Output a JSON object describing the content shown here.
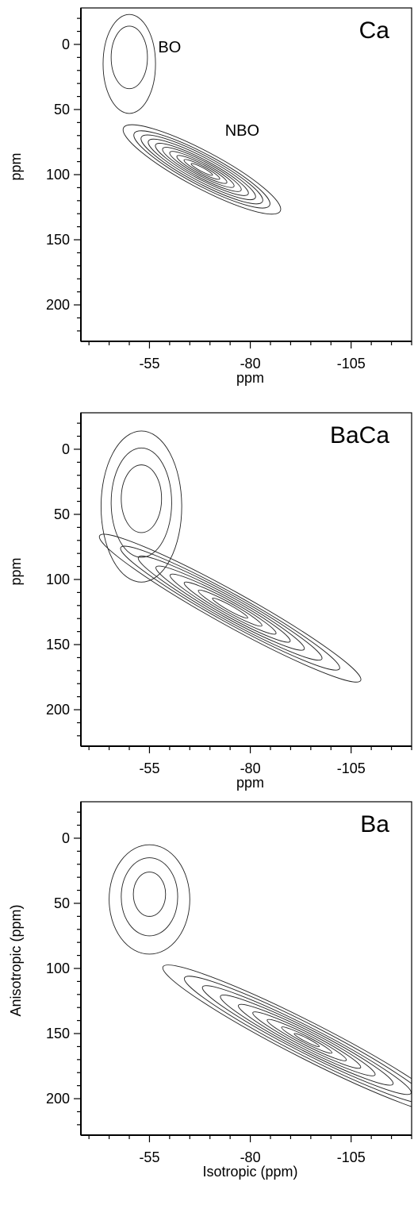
{
  "chart_data": [
    {
      "type": "contour",
      "panel_label": "Ca",
      "xlabel": "ppm",
      "ylabel": "ppm",
      "xlim": [
        -38,
        -120
      ],
      "ylim": [
        -28,
        228
      ],
      "x_ticks": [
        -55,
        -80,
        -105
      ],
      "x_tick_labels": [
        "-55",
        "-80",
        "-105"
      ],
      "y_ticks": [
        0,
        50,
        100,
        150,
        200
      ],
      "y_tick_labels": [
        "0",
        "50",
        "100",
        "150",
        "200"
      ],
      "annotations": [
        {
          "text": "BO",
          "x": -60,
          "y": 2
        },
        {
          "text": "NBO",
          "x": -78,
          "y": 66
        }
      ],
      "peaks": [
        {
          "name": "BO",
          "x": -50,
          "y": 10,
          "levels": [
            {
              "rx": 6.5,
              "ry": 38,
              "rot": 0,
              "dx": 0,
              "dy": 5
            },
            {
              "rx": 4.5,
              "ry": 24,
              "rot": 0,
              "dx": 0,
              "dy": 0
            }
          ]
        },
        {
          "name": "NBO",
          "x": -68,
          "y": 96,
          "levels": [
            {
              "rx": 22,
              "ry": 14,
              "rot": 28,
              "dx": 0,
              "dy": 0
            },
            {
              "rx": 19,
              "ry": 12,
              "rot": 28,
              "dx": 0,
              "dy": 0
            },
            {
              "rx": 17,
              "ry": 10.5,
              "rot": 28,
              "dx": 0,
              "dy": 0
            },
            {
              "rx": 15,
              "ry": 9,
              "rot": 28,
              "dx": 0,
              "dy": 0
            },
            {
              "rx": 13,
              "ry": 7.5,
              "rot": 28,
              "dx": 0,
              "dy": 0
            },
            {
              "rx": 11,
              "ry": 6.3,
              "rot": 28,
              "dx": 0,
              "dy": 0
            },
            {
              "rx": 9,
              "ry": 5,
              "rot": 28,
              "dx": 0,
              "dy": 0
            },
            {
              "rx": 7,
              "ry": 3.8,
              "rot": 28,
              "dx": 0,
              "dy": 0
            },
            {
              "rx": 5,
              "ry": 2.6,
              "rot": 28,
              "dx": 0,
              "dy": 0
            },
            {
              "rx": 3,
              "ry": 1.5,
              "rot": 28,
              "dx": 0,
              "dy": 0
            }
          ]
        }
      ]
    },
    {
      "type": "contour",
      "panel_label": "BaCa",
      "xlabel": "ppm",
      "ylabel": "ppm",
      "xlim": [
        -38,
        -120
      ],
      "ylim": [
        -28,
        228
      ],
      "x_ticks": [
        -55,
        -80,
        -105
      ],
      "x_tick_labels": [
        "-55",
        "-80",
        "-105"
      ],
      "y_ticks": [
        0,
        50,
        100,
        150,
        200
      ],
      "y_tick_labels": [
        "0",
        "50",
        "100",
        "150",
        "200"
      ],
      "annotations": [],
      "peaks": [
        {
          "name": "BO",
          "x": -53,
          "y": 38,
          "levels": [
            {
              "rx": 10,
              "ry": 58,
              "rot": 0,
              "dx": 0,
              "dy": 6
            },
            {
              "rx": 7.5,
              "ry": 42,
              "rot": 0,
              "dx": 0,
              "dy": 3
            },
            {
              "rx": 5,
              "ry": 26,
              "rot": 0,
              "dx": 0,
              "dy": 0
            }
          ]
        },
        {
          "name": "NBO",
          "x": -75,
          "y": 122,
          "levels": [
            {
              "rx": 37,
              "ry": 13,
              "rot": 29,
              "dx": 0,
              "dy": 0
            },
            {
              "rx": 31,
              "ry": 11,
              "rot": 29,
              "dx": 0,
              "dy": 0
            },
            {
              "rx": 26,
              "ry": 9.5,
              "rot": 29,
              "dx": 0,
              "dy": 0
            },
            {
              "rx": 21,
              "ry": 8,
              "rot": 29,
              "dx": 0,
              "dy": 0
            },
            {
              "rx": 17,
              "ry": 6.5,
              "rot": 29,
              "dx": 0,
              "dy": 0
            },
            {
              "rx": 13,
              "ry": 5,
              "rot": 29,
              "dx": 0,
              "dy": 0
            },
            {
              "rx": 9,
              "ry": 3.5,
              "rot": 29,
              "dx": 0,
              "dy": 0
            },
            {
              "rx": 5,
              "ry": 2,
              "rot": 29,
              "dx": 0,
              "dy": 0
            }
          ]
        }
      ]
    },
    {
      "type": "contour",
      "panel_label": "Ba",
      "xlabel": "Isotropic (ppm)",
      "ylabel": "Anisotropic (ppm)",
      "xlim": [
        -38,
        -120
      ],
      "ylim": [
        -28,
        228
      ],
      "x_ticks": [
        -55,
        -80,
        -105
      ],
      "x_tick_labels": [
        "-55",
        "-80",
        "-105"
      ],
      "y_ticks": [
        0,
        50,
        100,
        150,
        200
      ],
      "y_tick_labels": [
        "0",
        "50",
        "100",
        "150",
        "200"
      ],
      "annotations": [],
      "peaks": [
        {
          "name": "BO",
          "x": -55,
          "y": 43,
          "levels": [
            {
              "rx": 10,
              "ry": 42,
              "rot": 0,
              "dx": 0,
              "dy": 4
            },
            {
              "rx": 7,
              "ry": 30,
              "rot": 0,
              "dx": 0,
              "dy": 2
            },
            {
              "rx": 4,
              "ry": 17,
              "rot": 0,
              "dx": 0,
              "dy": 0
            }
          ]
        },
        {
          "name": "NBO",
          "x": -94,
          "y": 155,
          "levels": [
            {
              "rx": 40,
              "ry": 14,
              "rot": 27,
              "dx": 0,
              "dy": 0
            },
            {
              "rx": 34,
              "ry": 12,
              "rot": 27,
              "dx": 0,
              "dy": 0
            },
            {
              "rx": 29,
              "ry": 10,
              "rot": 27,
              "dx": 0,
              "dy": 0
            },
            {
              "rx": 24,
              "ry": 8.5,
              "rot": 27,
              "dx": 0,
              "dy": 0
            },
            {
              "rx": 19,
              "ry": 7,
              "rot": 27,
              "dx": 0,
              "dy": 0
            },
            {
              "rx": 15,
              "ry": 5.5,
              "rot": 27,
              "dx": 0,
              "dy": 0
            },
            {
              "rx": 11,
              "ry": 4,
              "rot": 27,
              "dx": 0,
              "dy": 0
            },
            {
              "rx": 7,
              "ry": 2.6,
              "rot": 27,
              "dx": 0,
              "dy": 0
            },
            {
              "rx": 3.5,
              "ry": 1.4,
              "rot": 27,
              "dx": 0,
              "dy": 0
            }
          ]
        }
      ]
    }
  ]
}
